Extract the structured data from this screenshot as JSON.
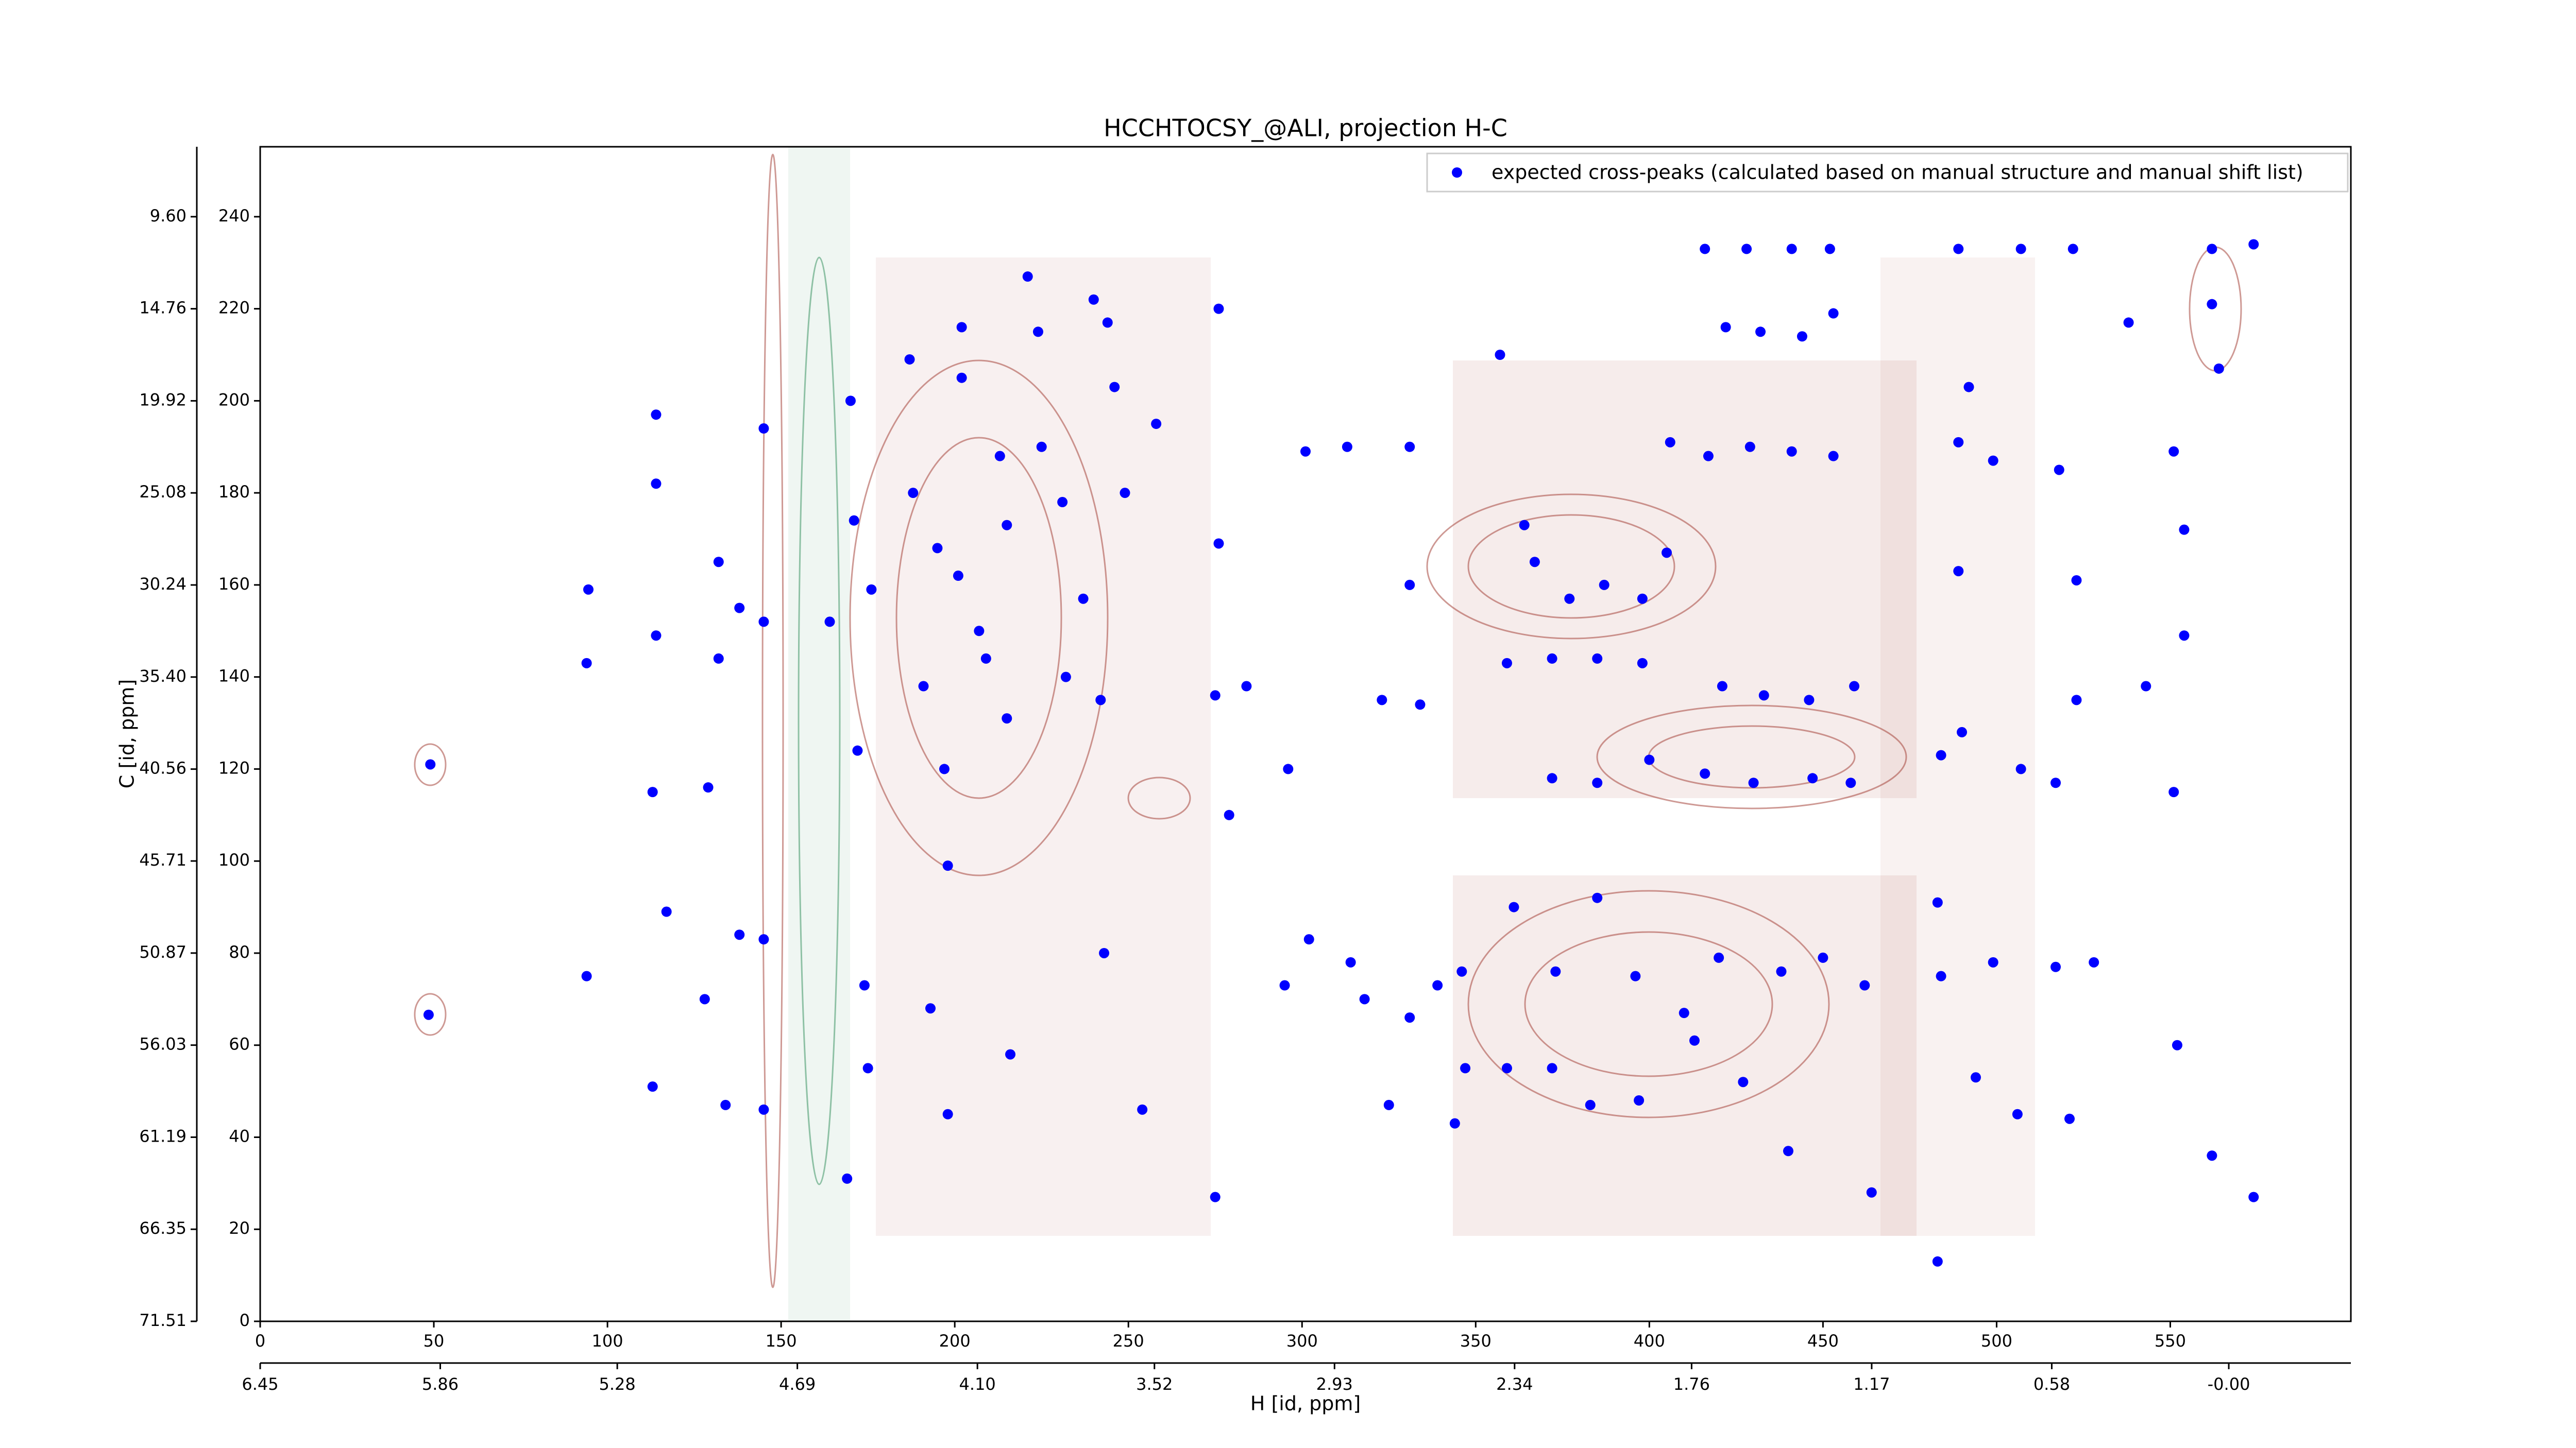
{
  "chart_data": {
    "type": "scatter",
    "title": "HCCHTOCSY_@ALI, projection H-C",
    "xlabel": "H [id, ppm]",
    "ylabel": "C [id, ppm]",
    "xlim": [
      0,
      602
    ],
    "xticks": [
      0,
      50,
      100,
      150,
      200,
      250,
      300,
      350,
      400,
      450,
      500,
      550
    ],
    "ylim": [
      0,
      255.2
    ],
    "yticks": [
      0,
      20,
      40,
      60,
      80,
      100,
      120,
      140,
      160,
      180,
      200,
      220,
      240
    ],
    "x2lim": [
      6.45,
      -0.4
    ],
    "x2ticks": [
      6.45,
      5.86,
      5.28,
      4.69,
      {
        "value": 4.1,
        "label": "4.10"
      },
      3.52,
      2.93,
      2.34,
      1.76,
      1.17,
      0.58,
      {
        "value": 0,
        "label": "-0.00"
      }
    ],
    "y2lim": [
      71.51,
      5.68
    ],
    "y2ticks": [
      {
        "value": 9.6,
        "label": "9.60"
      },
      14.76,
      19.92,
      25.08,
      30.24,
      {
        "value": 35.4,
        "label": "35.40"
      },
      40.56,
      45.71,
      50.87,
      56.03,
      61.19,
      66.35,
      71.51
    ],
    "legend": "upper right",
    "series": [
      {
        "name": "expected cross-peaks (calculated based on manual structure and manual shift list)",
        "color": "#0000ff",
        "x": [
          49,
          48.5,
          94.5,
          94,
          94,
          114,
          114,
          114,
          113,
          117,
          113,
          132,
          138,
          132,
          129,
          138,
          128,
          134,
          145,
          145,
          145,
          145,
          170,
          171,
          176,
          164,
          172,
          174,
          175,
          169,
          187,
          188,
          195,
          191,
          197,
          198,
          193,
          198,
          202,
          202,
          201,
          207,
          209,
          213,
          215,
          215,
          216,
          221,
          224,
          225,
          231,
          232,
          237,
          240,
          244,
          246,
          249,
          242,
          243,
          254,
          258,
          276,
          276,
          275,
          275,
          279,
          284,
          296,
          301,
          313,
          331,
          331,
          323,
          334,
          295,
          302,
          314,
          318,
          331,
          325,
          344,
          339,
          357,
          364,
          367,
          359,
          372,
          385,
          398,
          377,
          387,
          398,
          405,
          406,
          417,
          429,
          441,
          453,
          422,
          432,
          444,
          453,
          416,
          428,
          441,
          452,
          372,
          385,
          400,
          416,
          430,
          447,
          458,
          421,
          433,
          446,
          459,
          489,
          492,
          489,
          499,
          489,
          484,
          490,
          507,
          517,
          523,
          523,
          543,
          551,
          554,
          562,
          562,
          564,
          551,
          554,
          518,
          538,
          522,
          507,
          346,
          361,
          373,
          385,
          396,
          410,
          420,
          438,
          450,
          462,
          347,
          359,
          372,
          383,
          397,
          413,
          427,
          440,
          464,
          483,
          484,
          499,
          517,
          528,
          494,
          506,
          521,
          552,
          562,
          574,
          483,
          574
        ],
        "y": [
          121,
          66.6,
          159,
          143,
          75,
          197,
          182,
          149,
          115,
          89,
          51,
          165,
          155,
          144,
          116,
          84,
          70,
          47,
          194,
          152,
          83,
          46,
          200,
          174,
          159,
          152,
          124,
          73,
          55,
          31,
          209,
          180,
          168,
          138,
          120,
          99,
          68,
          45,
          216,
          205,
          162,
          150,
          144,
          188,
          173,
          131,
          58,
          227,
          215,
          190,
          178,
          140,
          157,
          222,
          217,
          203,
          180,
          135,
          80,
          46,
          195,
          220,
          169,
          136,
          27,
          110,
          138,
          120,
          189,
          190,
          190,
          160,
          135,
          134,
          73,
          83,
          78,
          70,
          66,
          47,
          43,
          73,
          210,
          173,
          165,
          143,
          144,
          144,
          143,
          157,
          160,
          157,
          167,
          191,
          188,
          190,
          189,
          188,
          216,
          215,
          214,
          219,
          233,
          233,
          233,
          233,
          118,
          117,
          122,
          119,
          117,
          118,
          117,
          138,
          136,
          135,
          138,
          233,
          203,
          191,
          187,
          163,
          123,
          128,
          120,
          117,
          135,
          161,
          138,
          115,
          149,
          233,
          221,
          207,
          189,
          172,
          185,
          217,
          233,
          233,
          76,
          90,
          76,
          92,
          75,
          67,
          79,
          76,
          79,
          73,
          55,
          55,
          55,
          47,
          48,
          61,
          52,
          37,
          28,
          91,
          75,
          78,
          77,
          78,
          53,
          45,
          44,
          60,
          36,
          27,
          13,
          234
        ]
      }
    ]
  }
}
